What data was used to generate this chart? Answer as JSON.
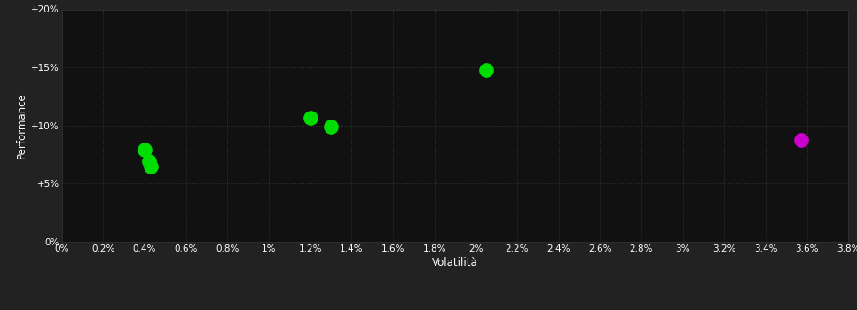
{
  "background_color": "#222222",
  "plot_bg_color": "#111111",
  "grid_color": "#3a3a3a",
  "title": "",
  "xlabel": "Volatilità",
  "ylabel": "Performance",
  "xlim": [
    0.0,
    0.038
  ],
  "ylim": [
    0.0,
    0.2
  ],
  "xtick_labels": [
    "0%",
    "0.2%",
    "0.4%",
    "0.6%",
    "0.8%",
    "1%",
    "1.2%",
    "1.4%",
    "1.6%",
    "1.8%",
    "2%",
    "2.2%",
    "2.4%",
    "2.6%",
    "2.8%",
    "3%",
    "3.2%",
    "3.4%",
    "3.6%",
    "3.8%"
  ],
  "xtick_values": [
    0.0,
    0.002,
    0.004,
    0.006,
    0.008,
    0.01,
    0.012,
    0.014,
    0.016,
    0.018,
    0.02,
    0.022,
    0.024,
    0.026,
    0.028,
    0.03,
    0.032,
    0.034,
    0.036,
    0.038
  ],
  "ytick_labels": [
    "0%",
    "+5%",
    "+10%",
    "+15%",
    "+20%"
  ],
  "ytick_values": [
    0.0,
    0.05,
    0.1,
    0.15,
    0.2
  ],
  "points_green": [
    [
      0.004,
      0.079
    ],
    [
      0.0042,
      0.069
    ],
    [
      0.0043,
      0.065
    ],
    [
      0.012,
      0.107
    ],
    [
      0.013,
      0.099
    ],
    [
      0.0205,
      0.148
    ]
  ],
  "points_magenta": [
    [
      0.0357,
      0.088
    ]
  ],
  "dot_size": 12,
  "text_color": "#ffffff",
  "font_size_ticks": 7.5,
  "font_size_labels": 8.5
}
